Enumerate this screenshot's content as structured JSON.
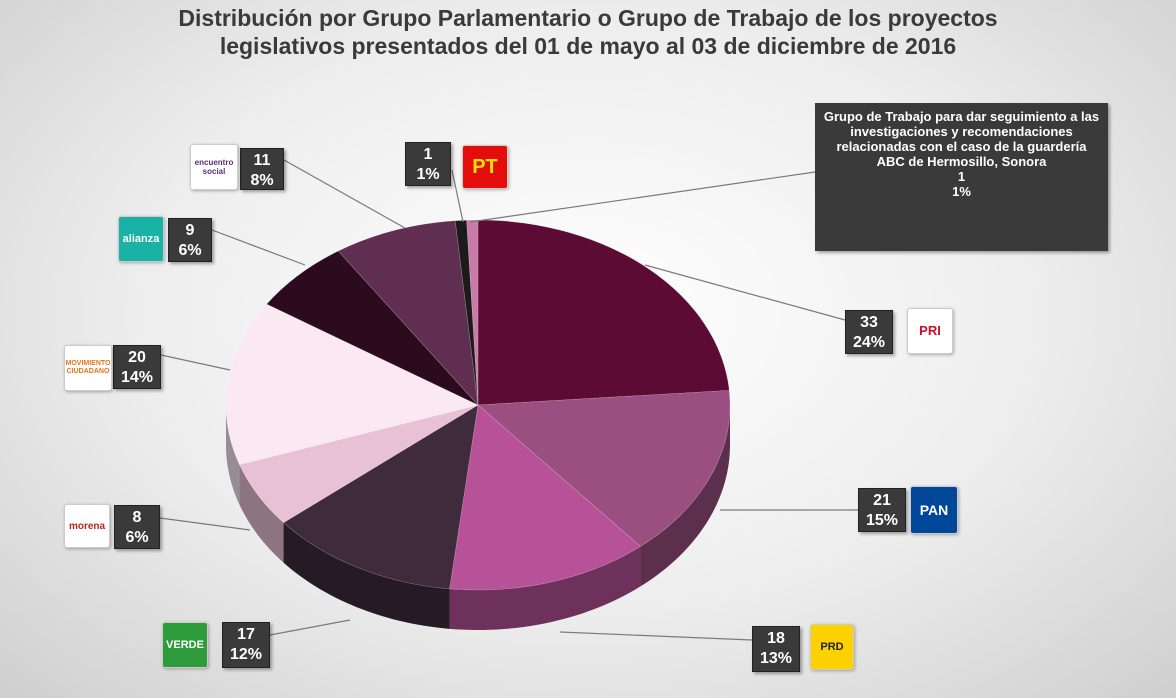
{
  "chart_data": {
    "type": "pie",
    "title": [
      "Distribución por Grupo Parlamentario o Grupo de Trabajo de los proyectos",
      "legislativos presentados del 01 de mayo  al 03 de diciembre de 2016"
    ],
    "categories": [
      "PRI",
      "PAN",
      "PRD",
      "VERDE",
      "morena",
      "MOVIMIENTO CIUDADANO",
      "alianza",
      "encuentro social",
      "PT",
      "Grupo de Trabajo para dar seguimiento a las investigaciones y recomendaciones relacionadas con el caso de la guardería ABC de Hermosillo, Sonora"
    ],
    "values": [
      33,
      21,
      18,
      17,
      8,
      20,
      9,
      11,
      1,
      1
    ],
    "percentage_labels": [
      "24%",
      "15%",
      "13%",
      "12%",
      "6%",
      "14%",
      "6%",
      "8%",
      "1%",
      "1%"
    ],
    "colors": [
      "#5c0b35",
      "#9a4f80",
      "#b75198",
      "#3f2b3c",
      "#e9c1d5",
      "#fbe9f1",
      "#2d0b1e",
      "#5f2e50",
      "#1b1b1b",
      "#c97aa9"
    ]
  }
}
